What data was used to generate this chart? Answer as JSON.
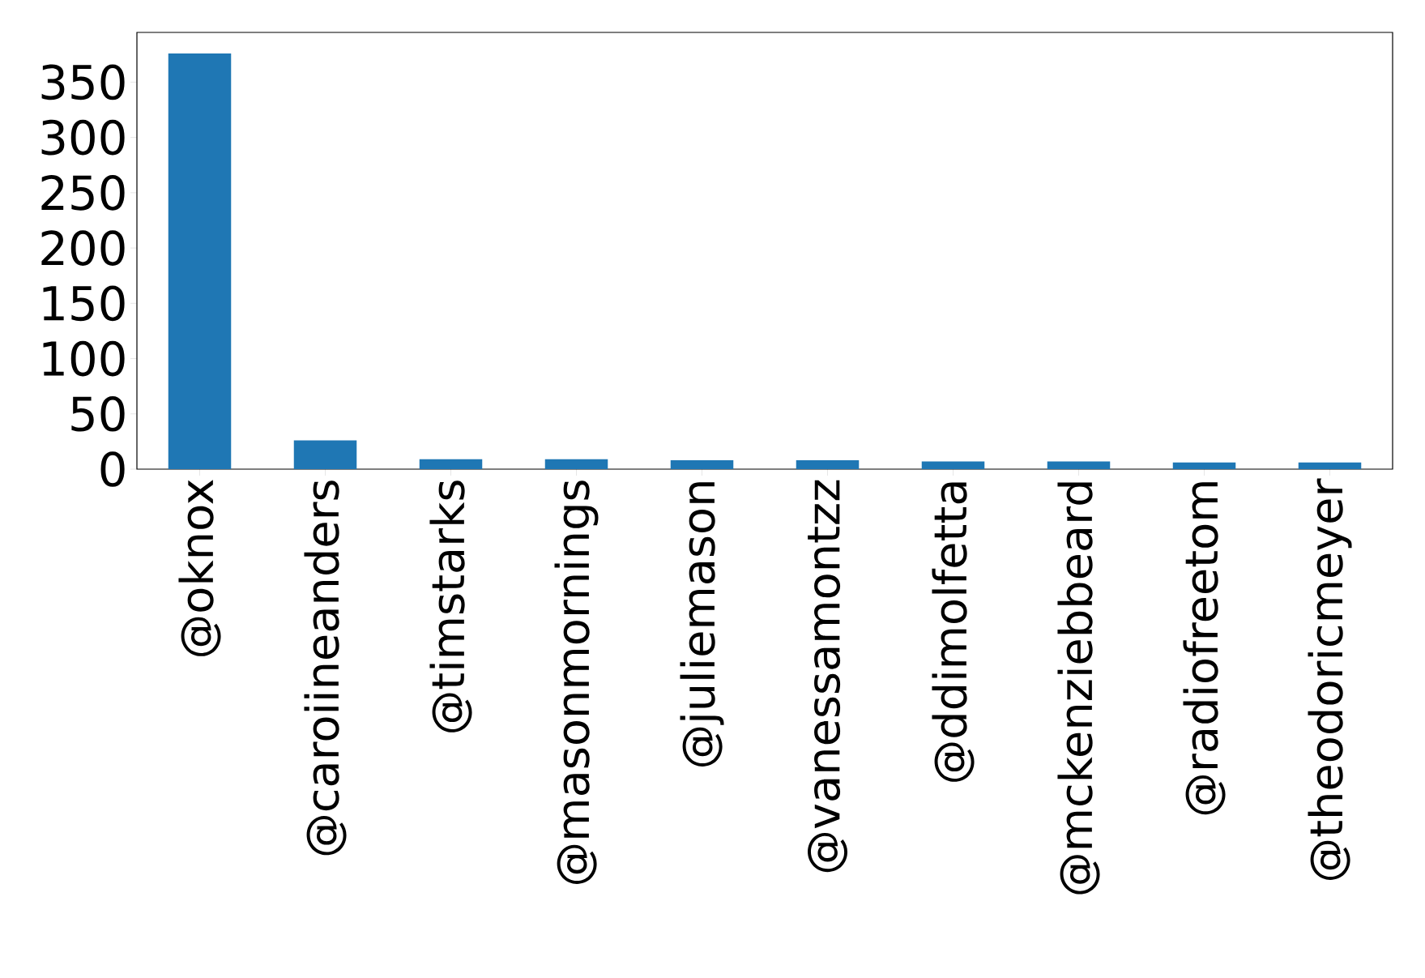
{
  "chart_data": {
    "type": "bar",
    "categories": [
      "@oknox",
      "@caroiineanders",
      "@timstarks",
      "@masonmornings",
      "@juliemason",
      "@vanessamontzz",
      "@ddimolfetta",
      "@mckenziebbeard",
      "@radiofreetom",
      "@theodoricmeyer"
    ],
    "values": [
      376,
      26,
      9,
      9,
      8,
      8,
      7,
      7,
      6,
      6
    ],
    "color": "#1f77b4",
    "ylim": [
      0,
      395
    ],
    "yticks": [
      0,
      50,
      100,
      150,
      200,
      250,
      300,
      350
    ],
    "grid": false
  }
}
